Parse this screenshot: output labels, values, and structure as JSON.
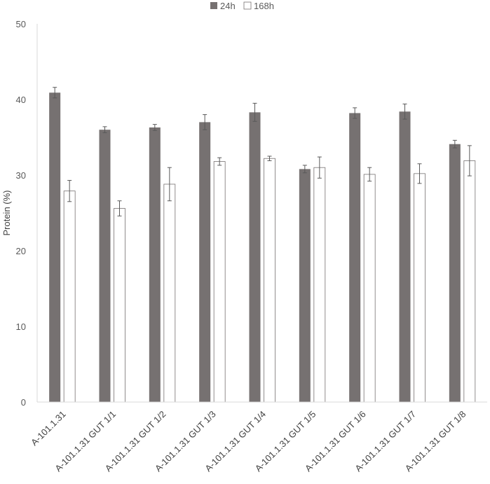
{
  "chart_data": {
    "type": "bar",
    "ylabel": "Protein (%)",
    "ylim": [
      0,
      50
    ],
    "yticks": [
      0,
      10,
      20,
      30,
      40,
      50
    ],
    "legend_position": "top-center",
    "grid": false,
    "categories": [
      "A-101.1.31",
      "A-101.1.31 GUT 1/1",
      "A-101.1.31 GUT 1/2",
      "A-101.1.31 GUT 1/3",
      "A-101.1.31 GUT 1/4",
      "A-101.1.31 GUT 1/5",
      "A-101.1.31 GUT 1/6",
      "A-101.1.31 GUT 1/7",
      "A-101.1.31 GUT 1/8"
    ],
    "series": [
      {
        "name": "24h",
        "color": "#767171",
        "values": [
          40.9,
          36.0,
          36.3,
          37.0,
          38.3,
          30.8,
          38.2,
          38.4,
          34.1
        ],
        "errors": [
          0.7,
          0.4,
          0.4,
          1.0,
          1.2,
          0.5,
          0.7,
          1.0,
          0.5
        ]
      },
      {
        "name": "168h",
        "color": "#ffffff",
        "values": [
          27.9,
          25.6,
          28.8,
          31.8,
          32.2,
          31.0,
          30.1,
          30.2,
          31.9
        ],
        "errors": [
          1.4,
          1.0,
          2.2,
          0.5,
          0.3,
          1.4,
          0.9,
          1.3,
          2.0
        ]
      }
    ]
  }
}
